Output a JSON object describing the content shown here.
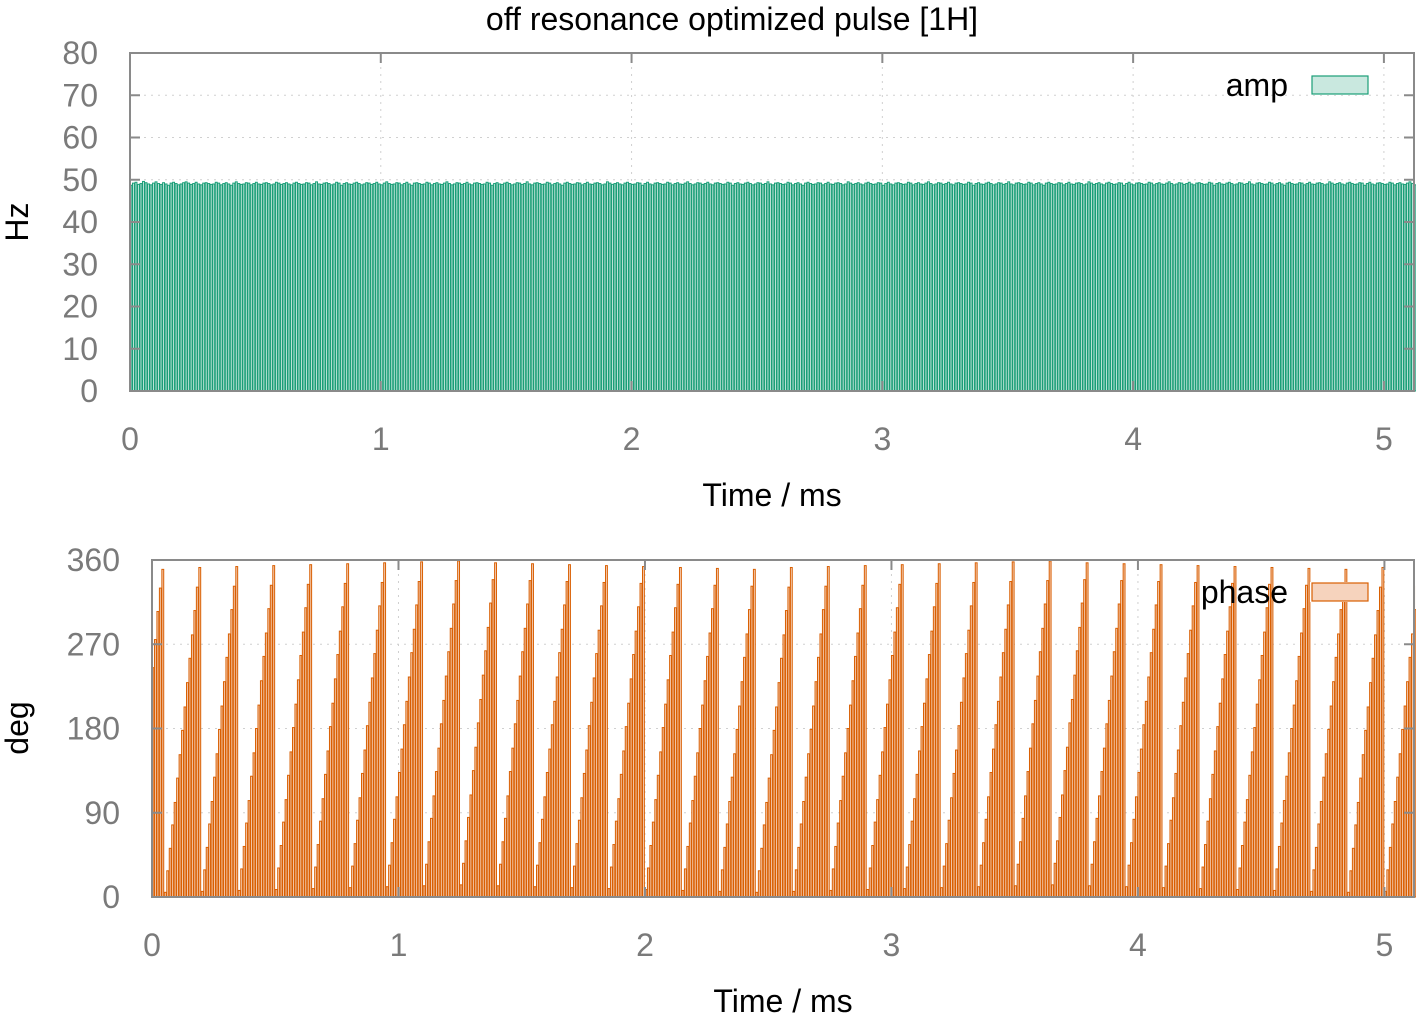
{
  "figure": {
    "title": "off resonance optimized pulse [1H]"
  },
  "chart_data": [
    {
      "type": "bar",
      "title": "off resonance optimized pulse [1H]",
      "xlabel": "Time / ms",
      "ylabel": "Hz",
      "xlim": [
        0,
        5.12
      ],
      "ylim": [
        0,
        80
      ],
      "xticks": [
        "0",
        "1",
        "2",
        "3",
        "4",
        "5"
      ],
      "yticks": [
        "0",
        "10",
        "20",
        "30",
        "40",
        "50",
        "60",
        "70",
        "80"
      ],
      "grid": true,
      "legend_position": "top-right",
      "series": [
        {
          "name": "amp",
          "stroke": "#1a9e77",
          "fill": "#c9e8df",
          "step_ms": 0.01,
          "values": [
            48.7,
            49.2,
            49.4,
            48.9,
            49.1,
            49.6,
            49.3,
            49.0,
            48.8,
            49.2,
            49.5,
            49.1,
            48.9,
            49.3,
            49.0,
            48.7,
            49.2,
            49.4,
            49.1,
            48.8,
            49.0,
            49.3,
            49.5,
            49.2,
            48.9,
            49.1,
            49.4,
            49.0,
            48.8,
            49.2,
            49.3,
            49.1,
            48.9,
            49.0,
            49.4,
            49.2,
            48.8,
            49.1,
            49.3,
            49.0,
            48.7,
            49.2,
            49.5,
            49.1,
            48.9,
            49.0,
            49.3,
            49.2,
            48.8,
            49.1,
            49.4,
            49.0,
            48.9,
            49.2,
            49.3,
            49.1,
            48.8,
            49.0,
            49.4,
            49.2,
            48.9,
            49.1,
            49.3,
            49.0,
            48.8,
            49.2,
            49.4,
            49.1,
            48.9,
            49.0,
            49.3,
            49.2,
            48.8,
            49.1,
            49.5,
            49.0,
            48.9,
            49.2,
            49.3,
            49.1,
            48.8,
            49.0,
            49.4,
            49.2,
            48.7,
            49.1,
            49.3,
            49.0,
            48.9,
            49.2,
            49.4,
            49.1,
            48.8,
            49.0,
            49.3,
            49.2,
            48.9,
            49.1,
            49.4,
            49.0,
            48.8,
            49.2,
            49.5,
            49.1,
            48.9,
            49.0,
            49.3,
            49.2,
            48.8,
            49.1,
            49.4,
            49.0,
            48.7,
            49.2,
            49.3,
            49.1,
            48.9,
            49.0,
            49.4,
            49.2,
            48.8,
            49.1,
            49.3,
            49.0,
            48.9,
            49.2,
            49.5,
            49.1,
            48.8,
            49.0,
            49.3,
            49.2,
            48.9,
            49.1,
            49.4,
            49.0,
            48.8,
            49.2,
            49.3,
            49.1,
            48.9,
            49.0,
            49.4,
            49.2,
            48.7,
            49.1,
            49.3,
            49.0,
            48.9,
            49.2,
            49.4,
            49.1,
            48.8,
            49.0,
            49.3,
            49.2,
            48.9,
            49.1,
            49.5,
            49.0,
            48.8,
            49.2,
            49.3,
            49.1,
            48.9,
            49.0,
            49.4,
            49.2,
            48.8,
            49.1,
            49.3,
            49.0,
            48.7,
            49.2,
            49.4,
            49.1,
            48.9,
            49.0,
            49.3,
            49.2,
            48.8,
            49.1,
            49.4,
            49.0,
            48.9,
            49.2,
            49.3,
            49.1,
            48.8,
            49.0,
            49.5,
            49.2,
            48.9,
            49.1,
            49.3,
            49.0,
            48.8,
            49.2,
            49.4,
            49.1,
            48.9,
            49.0,
            49.3,
            49.2,
            48.7,
            49.1,
            49.4,
            49.0,
            48.8,
            49.2,
            49.3,
            49.1,
            48.9,
            49.0,
            49.4,
            49.2,
            48.8,
            49.1,
            49.3,
            49.0,
            48.9,
            49.2,
            49.5,
            49.1,
            48.8,
            49.0,
            49.3,
            49.2,
            48.9,
            49.1,
            49.4,
            49.0,
            48.8,
            49.2,
            49.3,
            49.1,
            48.9,
            49.0,
            49.4,
            49.2,
            48.7,
            49.1,
            49.3,
            49.0,
            48.9,
            49.2,
            49.4,
            49.1,
            48.8,
            49.0,
            49.3,
            49.2,
            48.9,
            49.1,
            49.5,
            49.0,
            48.8,
            49.2,
            49.3,
            49.1,
            48.9,
            49.0,
            49.4,
            49.2,
            48.8,
            49.1,
            49.3,
            49.0,
            48.7,
            49.2,
            49.4,
            49.1,
            48.9,
            49.0,
            49.3,
            49.2,
            48.8,
            49.1,
            49.4,
            49.0,
            48.9,
            49.2,
            49.3,
            49.1,
            48.8,
            49.0,
            49.5,
            49.2,
            48.9,
            49.1,
            49.3,
            49.0,
            48.8,
            49.2,
            49.4,
            49.1,
            48.9,
            49.0,
            49.3,
            49.2,
            48.7,
            49.1,
            49.4,
            49.0,
            48.8,
            49.2,
            49.3,
            49.1,
            48.9,
            49.0,
            49.4,
            49.2,
            48.8,
            49.1,
            49.3,
            49.0,
            48.9,
            49.2,
            49.5,
            49.1,
            48.8,
            49.0,
            49.3,
            49.2,
            48.9,
            49.1,
            49.4,
            49.0,
            48.8,
            49.2,
            49.3,
            49.1,
            48.9,
            49.0,
            49.4,
            49.2,
            48.7,
            49.1,
            49.3,
            49.0,
            48.9,
            49.2,
            49.4,
            49.1,
            48.8,
            49.0,
            49.3,
            49.2,
            48.9,
            49.1,
            49.5,
            49.0,
            48.8,
            49.2,
            49.3,
            49.1,
            48.9,
            49.0,
            49.4,
            49.2,
            48.8,
            49.1,
            49.3,
            49.0,
            48.7,
            49.2,
            49.4,
            49.1,
            48.9,
            49.0,
            49.3,
            49.2,
            48.8,
            49.1,
            49.4,
            49.0,
            48.9,
            49.2,
            49.3,
            49.1,
            48.8,
            49.0,
            49.5,
            49.2,
            48.9,
            49.1,
            49.3,
            49.0,
            48.8,
            49.2,
            49.4,
            49.1,
            48.9,
            49.0,
            49.3,
            49.2,
            48.7,
            49.1,
            49.4,
            49.0,
            48.8,
            49.2,
            49.3,
            49.1,
            48.9,
            49.0,
            49.4,
            49.2,
            48.8,
            49.1,
            49.3,
            49.0,
            48.9,
            49.2,
            49.5,
            49.1,
            48.8,
            49.0,
            49.3,
            49.2,
            48.9,
            49.1,
            49.4,
            49.0,
            48.8,
            49.2,
            49.3,
            49.1,
            48.9,
            49.0,
            49.4,
            49.2,
            48.7,
            49.1,
            49.3,
            49.0,
            48.9,
            49.2,
            49.4,
            49.1,
            48.8,
            49.0,
            49.3,
            49.2,
            48.9,
            49.1,
            49.5,
            49.0,
            48.8,
            49.2,
            49.3,
            49.1,
            48.9,
            49.0,
            49.4,
            49.2,
            48.8,
            49.1,
            49.3,
            49.0,
            48.7,
            49.2,
            49.4,
            49.1,
            48.9,
            49.0,
            49.3,
            49.2,
            48.8,
            49.1,
            49.4,
            49.0,
            48.9,
            49.2,
            49.3,
            49.1,
            48.8,
            49.0,
            49.5,
            49.2,
            48.9,
            49.1,
            49.3,
            49.0,
            48.8,
            49.2,
            49.4,
            49.1,
            48.9,
            49.0,
            49.3,
            49.2,
            48.7,
            49.1,
            49.4,
            49.0,
            48.8,
            49.2,
            49.3,
            49.1,
            48.9,
            49.0,
            49.4,
            49.2,
            48.8,
            49.1,
            49.3,
            49.0,
            48.9,
            49.2,
            49.5,
            49.1,
            48.8,
            49.0,
            49.3,
            49.2,
            48.9,
            49.1,
            49.4,
            49.0,
            48.8,
            49.2,
            49.3,
            49.1
          ]
        }
      ]
    },
    {
      "type": "bar",
      "xlabel": "Time / ms",
      "ylabel": "deg",
      "xlim": [
        0,
        5.12
      ],
      "ylim": [
        0,
        360
      ],
      "xticks": [
        "0",
        "1",
        "2",
        "3",
        "4",
        "5"
      ],
      "yticks": [
        "0",
        "90",
        "180",
        "270",
        "360"
      ],
      "grid": true,
      "legend_position": "top-right",
      "series": [
        {
          "name": "phase",
          "stroke": "#d95f02",
          "fill": "#f6d3bd",
          "step_ms": 0.01,
          "values": [
            245,
            275,
            305,
            330,
            350,
            5,
            28,
            52,
            77,
            101,
            127,
            152,
            178,
            203,
            229,
            255,
            280,
            306,
            331,
            352,
            6,
            29,
            53,
            78,
            102,
            128,
            153,
            179,
            204,
            230,
            256,
            281,
            307,
            332,
            353,
            7,
            30,
            54,
            79,
            103,
            129,
            154,
            180,
            205,
            231,
            257,
            282,
            308,
            333,
            354,
            8,
            31,
            55,
            80,
            104,
            130,
            155,
            181,
            206,
            232,
            258,
            283,
            309,
            334,
            355,
            9,
            32,
            56,
            81,
            105,
            131,
            156,
            182,
            207,
            233,
            259,
            284,
            310,
            335,
            356,
            10,
            33,
            57,
            82,
            106,
            132,
            157,
            183,
            208,
            234,
            260,
            285,
            311,
            336,
            357,
            11,
            34,
            58,
            83,
            107,
            133,
            158,
            184,
            209,
            235,
            261,
            286,
            312,
            337,
            358,
            12,
            35,
            59,
            84,
            108,
            134,
            159,
            185,
            210,
            236,
            262,
            287,
            313,
            338,
            359,
            13,
            36,
            60,
            85,
            109,
            135,
            160,
            186,
            211,
            237,
            263,
            288,
            314,
            339,
            357,
            12,
            35,
            59,
            84,
            108,
            134,
            159,
            185,
            210,
            236,
            262,
            287,
            313,
            338,
            356,
            11,
            34,
            58,
            83,
            107,
            133,
            158,
            184,
            209,
            235,
            261,
            286,
            312,
            337,
            355,
            10,
            33,
            57,
            82,
            106,
            132,
            157,
            183,
            208,
            234,
            260,
            285,
            311,
            336,
            354,
            9,
            32,
            56,
            81,
            105,
            131,
            156,
            182,
            207,
            233,
            259,
            284,
            310,
            335,
            353,
            8,
            31,
            55,
            80,
            104,
            130,
            155,
            181,
            206,
            232,
            258,
            283,
            309,
            334,
            352,
            7,
            30,
            54,
            79,
            103,
            129,
            154,
            180,
            205,
            231,
            257,
            282,
            308,
            333,
            351,
            6,
            29,
            53,
            78,
            102,
            128,
            153,
            179,
            204,
            230,
            256,
            281,
            307,
            332,
            350,
            5,
            28,
            52,
            77,
            101,
            127,
            152,
            178,
            203,
            229,
            255,
            280,
            306,
            331,
            352,
            6,
            29,
            53,
            78,
            102,
            128,
            153,
            179,
            204,
            230,
            256,
            281,
            307,
            332,
            353,
            7,
            30,
            54,
            79,
            103,
            129,
            154,
            180,
            205,
            231,
            257,
            282,
            308,
            333,
            354,
            8,
            31,
            55,
            80,
            104,
            130,
            155,
            181,
            206,
            232,
            258,
            283,
            309,
            334,
            355,
            9,
            32,
            56,
            81,
            105,
            131,
            156,
            182,
            207,
            233,
            259,
            284,
            310,
            335,
            356,
            10,
            33,
            57,
            82,
            106,
            132,
            157,
            183,
            208,
            234,
            260,
            285,
            311,
            336,
            357,
            11,
            34,
            58,
            83,
            107,
            133,
            158,
            184,
            209,
            235,
            261,
            286,
            312,
            337,
            358,
            12,
            35,
            59,
            84,
            108,
            134,
            159,
            185,
            210,
            236,
            262,
            287,
            313,
            338,
            359,
            13,
            36,
            60,
            85,
            109,
            135,
            160,
            186,
            211,
            237,
            263,
            288,
            314,
            339,
            357,
            12,
            35,
            59,
            84,
            108,
            134,
            159,
            185,
            210,
            236,
            262,
            287,
            313,
            338,
            356,
            11,
            34,
            58,
            83,
            107,
            133,
            158,
            184,
            209,
            235,
            261,
            286,
            312,
            337,
            355,
            10,
            33,
            57,
            82,
            106,
            132,
            157,
            183,
            208,
            234,
            260,
            285,
            311,
            336,
            354,
            9,
            32,
            56,
            81,
            105,
            131,
            156,
            182,
            207,
            233,
            259,
            284,
            310,
            335,
            353,
            8,
            31,
            55,
            80,
            104,
            130,
            155,
            181,
            206,
            232,
            258,
            283,
            309,
            334,
            352,
            7,
            30,
            54,
            79,
            103,
            129,
            154,
            180,
            205,
            231,
            257,
            282,
            308,
            333,
            351,
            6,
            29,
            53,
            78,
            102,
            128,
            153,
            179,
            204,
            230,
            256,
            281,
            307,
            332,
            350,
            5,
            28,
            52,
            77,
            101,
            127,
            152,
            178,
            203,
            229,
            255,
            280,
            306,
            331,
            352,
            6,
            29,
            53,
            78,
            102,
            128,
            153,
            179,
            204,
            230,
            256,
            281,
            307,
            332,
            353,
            7,
            30,
            54,
            79,
            103,
            129,
            154,
            180,
            205,
            231,
            257,
            282,
            308,
            333,
            354,
            8,
            31,
            55,
            80
          ]
        }
      ]
    }
  ]
}
